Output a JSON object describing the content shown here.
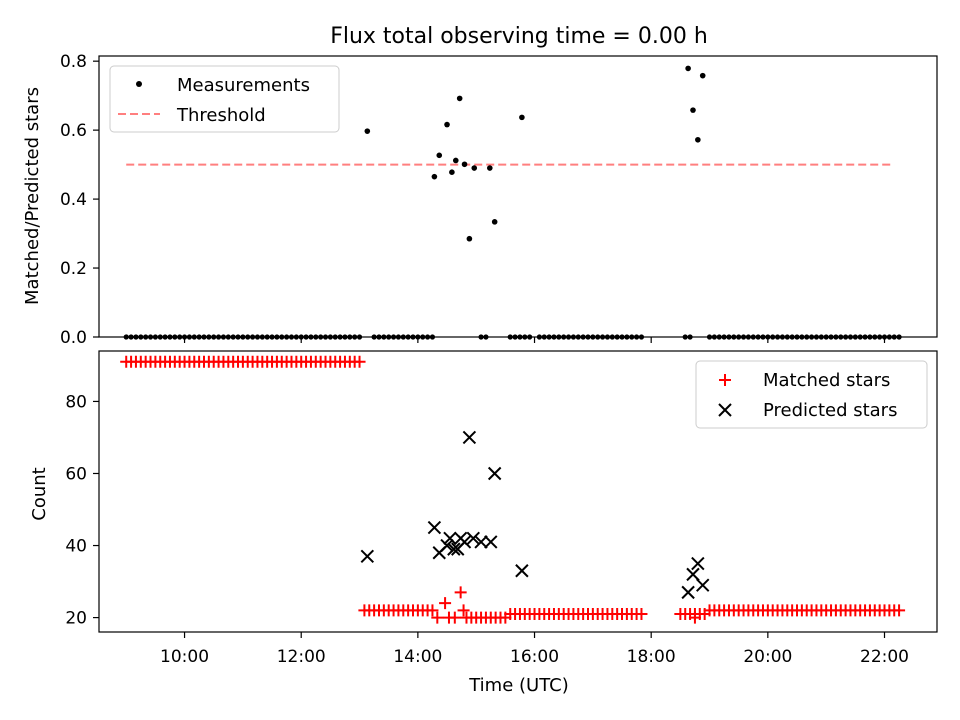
{
  "title": "Flux total observing time = 0.00 h",
  "chart_data": [
    {
      "type": "scatter",
      "ylabel": "Matched/Predicted stars",
      "xlim": [
        "08:32",
        "22:54"
      ],
      "ylim": [
        0,
        0.815
      ],
      "yticks": [
        0.0,
        0.2,
        0.4,
        0.6,
        0.8
      ],
      "grid": false,
      "legend_position": "upper-left",
      "series": [
        {
          "name": "Measurements",
          "marker": "dot",
          "color": "#000000",
          "x_step_minutes": 5,
          "x_ranges": [
            [
              "09:00",
              "13:00"
            ],
            [
              "13:15",
              "14:15"
            ],
            [
              "15:05",
              "15:10"
            ],
            [
              "15:35",
              "15:55"
            ],
            [
              "16:05",
              "17:50"
            ],
            [
              "18:35",
              "18:40"
            ],
            [
              "19:00",
              "22:15"
            ]
          ],
          "y": 0
        },
        {
          "name": "Measurements",
          "marker": "dot",
          "color": "#000000",
          "x": [
            "13:08",
            "14:17",
            "14:22",
            "14:30",
            "14:35",
            "14:39",
            "14:43",
            "14:48",
            "14:53",
            "14:58",
            "15:14",
            "15:19",
            "15:47",
            "18:38",
            "18:43",
            "18:48",
            "18:53"
          ],
          "y": [
            0.597,
            0.465,
            0.527,
            0.616,
            0.478,
            0.512,
            0.692,
            0.501,
            0.285,
            0.49,
            0.49,
            0.334,
            0.637,
            0.779,
            0.658,
            0.572,
            0.758
          ]
        },
        {
          "name": "Threshold",
          "style": "dashed",
          "color": "#ff7f7f",
          "x": [
            "09:00",
            "22:10"
          ],
          "y": [
            0.5,
            0.5
          ]
        }
      ]
    },
    {
      "type": "scatter",
      "xlabel": "Time (UTC)",
      "ylabel": "Count",
      "xlim": [
        "08:32",
        "22:54"
      ],
      "ylim": [
        16,
        94
      ],
      "xticks": [
        "10:00",
        "12:00",
        "14:00",
        "16:00",
        "18:00",
        "20:00",
        "22:00"
      ],
      "yticks": [
        20,
        40,
        60,
        80
      ],
      "grid": false,
      "legend_position": "upper-right",
      "series": [
        {
          "name": "Matched stars",
          "marker": "plus",
          "color": "#ff0000",
          "groups": [
            {
              "x_range": [
                "09:00",
                "13:00"
              ],
              "x_step_minutes": 5,
              "y": 91
            },
            {
              "x_range": [
                "13:05",
                "14:15"
              ],
              "x_step_minutes": 5,
              "y": 22
            },
            {
              "x_range": [
                "14:50",
                "15:30"
              ],
              "x_step_minutes": 5,
              "y": 20
            },
            {
              "x_range": [
                "15:35",
                "17:50"
              ],
              "x_step_minutes": 5,
              "y": 21
            },
            {
              "x_range": [
                "18:30",
                "18:55"
              ],
              "x_step_minutes": 5,
              "y": 21
            },
            {
              "x_range": [
                "19:00",
                "22:15"
              ],
              "x_step_minutes": 5,
              "y": 22
            }
          ],
          "x": [
            "14:20",
            "14:28",
            "14:32",
            "14:38",
            "14:44",
            "14:47",
            "18:45"
          ],
          "y": [
            20,
            24,
            20,
            20,
            27,
            22,
            20
          ]
        },
        {
          "name": "Predicted stars",
          "marker": "x",
          "color": "#000000",
          "x": [
            "13:08",
            "14:17",
            "14:22",
            "14:30",
            "14:33",
            "14:37",
            "14:41",
            "14:44",
            "14:48",
            "14:53",
            "14:57",
            "15:05",
            "15:15",
            "15:19",
            "15:47",
            "18:38",
            "18:43",
            "18:48",
            "18:53"
          ],
          "y": [
            37,
            45,
            38,
            40,
            42,
            39,
            39,
            42,
            41,
            70,
            42,
            41,
            41,
            60,
            33,
            27,
            32,
            35,
            29
          ]
        }
      ]
    }
  ]
}
